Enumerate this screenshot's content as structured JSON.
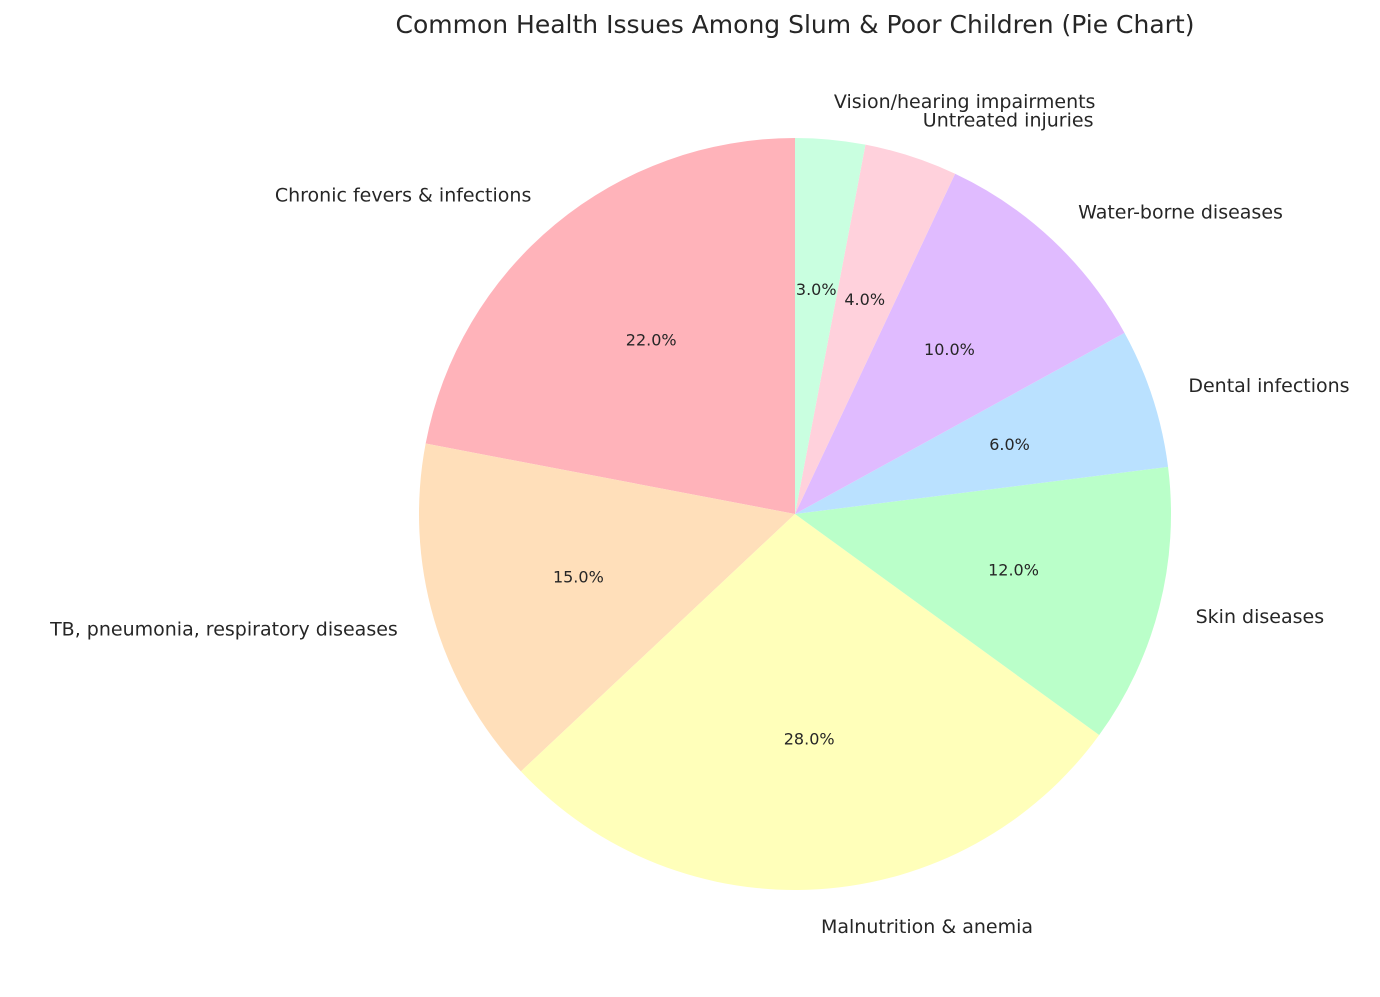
{
  "chart_data": {
    "type": "pie",
    "title": "Common Health Issues Among Slum & Poor Children (Pie Chart)",
    "start_angle_deg": 90,
    "direction": "counterclockwise",
    "slices": [
      {
        "label": "Chronic fevers & infections",
        "value": 22.0,
        "pct_label": "22.0%",
        "color": "#ffb3ba"
      },
      {
        "label": "TB, pneumonia, respiratory diseases",
        "value": 15.0,
        "pct_label": "15.0%",
        "color": "#ffdfba"
      },
      {
        "label": "Malnutrition & anemia",
        "value": 28.0,
        "pct_label": "28.0%",
        "color": "#ffffba"
      },
      {
        "label": "Skin diseases",
        "value": 12.0,
        "pct_label": "12.0%",
        "color": "#baffc9"
      },
      {
        "label": "Dental infections",
        "value": 6.0,
        "pct_label": "6.0%",
        "color": "#bae1ff"
      },
      {
        "label": "Water-borne diseases",
        "value": 10.0,
        "pct_label": "10.0%",
        "color": "#e0bbff"
      },
      {
        "label": "Untreated injuries",
        "value": 4.0,
        "pct_label": "4.0%",
        "color": "#ffd1dc"
      },
      {
        "label": "Vision/hearing impairments",
        "value": 3.0,
        "pct_label": "3.0%",
        "color": "#c9ffe0"
      }
    ]
  }
}
